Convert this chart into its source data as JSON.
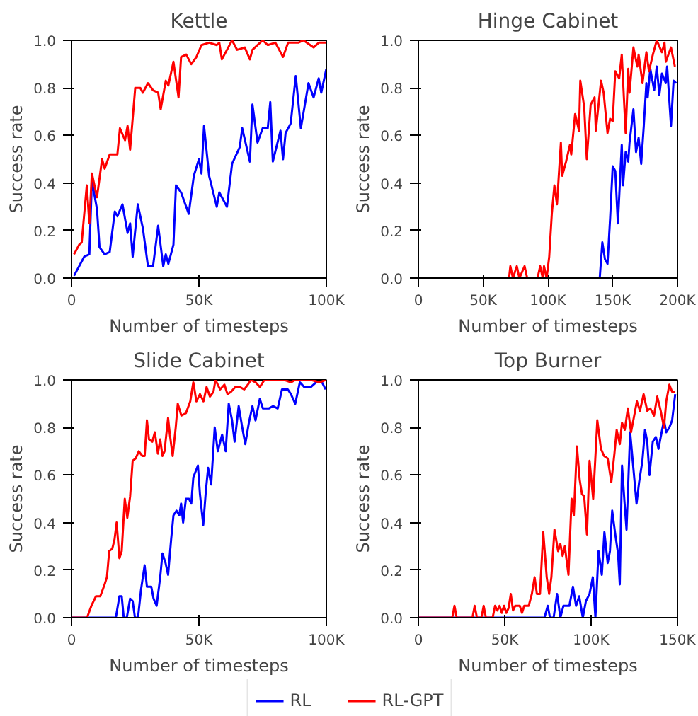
{
  "chart_data": [
    {
      "type": "line",
      "title": "Kettle",
      "xlabel": "Number of timesteps",
      "ylabel": "Success rate",
      "xlim": [
        0,
        100
      ],
      "xticks": [
        0,
        {
          "value": 50,
          "label": "50K"
        },
        {
          "value": 100,
          "label": "100K"
        }
      ],
      "ylim": [
        0,
        1
      ],
      "yticks": [
        {
          "value": 0,
          "label": "0.0"
        },
        {
          "value": 0.2,
          "label": "0.2"
        },
        {
          "value": 0.4,
          "label": "0.4"
        },
        {
          "value": 0.6,
          "label": "0.6"
        },
        {
          "value": 0.8,
          "label": "0.8"
        },
        {
          "value": 1,
          "label": "1.0"
        }
      ],
      "grid": false,
      "legend": "bottom",
      "line_style": "solid",
      "series": [
        {
          "name": "RL",
          "color": "#0000ff",
          "x": [
            1,
            3,
            5,
            7,
            8,
            10,
            11,
            13,
            15,
            17,
            18,
            20,
            22,
            23,
            24,
            26,
            28,
            30,
            32,
            34,
            36,
            37,
            38,
            40,
            41,
            43,
            46,
            48,
            50,
            51,
            52,
            54,
            57,
            58,
            61,
            63,
            66,
            67,
            70,
            71,
            73,
            75,
            77,
            78,
            79,
            82,
            83,
            84,
            86,
            88,
            90,
            93,
            95,
            97,
            98,
            100
          ],
          "values": [
            0.01,
            0.05,
            0.09,
            0.1,
            0.41,
            0.29,
            0.13,
            0.1,
            0.11,
            0.28,
            0.26,
            0.31,
            0.19,
            0.23,
            0.09,
            0.31,
            0.21,
            0.05,
            0.05,
            0.22,
            0.05,
            0.1,
            0.06,
            0.14,
            0.39,
            0.36,
            0.27,
            0.43,
            0.5,
            0.44,
            0.64,
            0.43,
            0.3,
            0.36,
            0.3,
            0.48,
            0.55,
            0.63,
            0.49,
            0.73,
            0.57,
            0.63,
            0.63,
            0.74,
            0.49,
            0.62,
            0.5,
            0.61,
            0.65,
            0.85,
            0.63,
            0.82,
            0.76,
            0.84,
            0.78,
            0.88
          ]
        },
        {
          "name": "RL-GPT",
          "color": "#ff0000",
          "x": [
            1,
            3,
            4,
            6,
            7,
            8,
            10,
            12,
            13,
            15,
            18,
            19,
            21,
            22,
            23,
            25,
            27,
            28,
            30,
            32,
            34,
            35,
            37,
            38,
            40,
            42,
            43,
            45,
            47,
            49,
            51,
            54,
            57,
            58,
            59,
            63,
            65,
            68,
            70,
            71,
            75,
            77,
            80,
            83,
            85,
            89,
            91,
            95,
            97,
            100
          ],
          "values": [
            0.1,
            0.14,
            0.15,
            0.39,
            0.23,
            0.44,
            0.34,
            0.5,
            0.46,
            0.52,
            0.52,
            0.63,
            0.58,
            0.64,
            0.54,
            0.8,
            0.8,
            0.78,
            0.82,
            0.79,
            0.78,
            0.71,
            0.83,
            0.81,
            0.91,
            0.76,
            0.93,
            0.94,
            0.9,
            0.93,
            0.98,
            0.99,
            0.98,
            0.99,
            0.92,
            1.0,
            0.96,
            0.97,
            0.92,
            0.96,
            1.0,
            0.98,
            0.99,
            0.93,
            0.99,
            0.99,
            1.0,
            0.97,
            0.99,
            0.99
          ]
        }
      ]
    },
    {
      "type": "line",
      "title": "Hinge Cabinet",
      "xlabel": "Number of timesteps",
      "ylabel": "Success rate",
      "xlim": [
        0,
        200
      ],
      "xticks": [
        0,
        {
          "value": 50,
          "label": "50K"
        },
        {
          "value": 100,
          "label": "100K"
        },
        {
          "value": 150,
          "label": "150K"
        },
        {
          "value": 200,
          "label": "200K"
        }
      ],
      "ylim": [
        0,
        1
      ],
      "yticks": [
        {
          "value": 0,
          "label": "0.0"
        },
        {
          "value": 0.2,
          "label": "0.2"
        },
        {
          "value": 0.4,
          "label": "0.4"
        },
        {
          "value": 0.6,
          "label": "0.6"
        },
        {
          "value": 0.8,
          "label": "0.8"
        },
        {
          "value": 1,
          "label": "1.0"
        }
      ],
      "grid": false,
      "line_style": "solid",
      "series": [
        {
          "color": "#0000ff",
          "x": [
            0,
            140,
            142,
            144,
            146,
            148,
            150,
            152,
            154,
            157,
            158,
            160,
            162,
            163,
            166,
            168,
            170,
            172,
            174,
            176,
            177,
            179,
            182,
            184,
            186,
            188,
            191,
            192,
            195,
            197,
            199
          ],
          "values": [
            0,
            0,
            0.15,
            0.08,
            0.06,
            0.25,
            0.47,
            0.45,
            0.23,
            0.56,
            0.39,
            0.53,
            0.49,
            0.57,
            0.71,
            0.53,
            0.59,
            0.48,
            0.64,
            0.82,
            0.76,
            0.88,
            0.79,
            0.89,
            0.77,
            0.86,
            0.82,
            0.89,
            0.64,
            0.83,
            0.82
          ]
        },
        {
          "color": "#ff0000",
          "x": [
            70,
            71,
            73,
            76,
            78,
            82,
            84,
            92,
            94,
            96,
            97,
            99,
            101,
            103,
            105,
            107,
            110,
            111,
            114,
            117,
            118,
            121,
            124,
            125,
            128,
            130,
            133,
            136,
            137,
            141,
            143,
            146,
            148,
            150,
            152,
            155,
            157,
            160,
            162,
            163,
            166,
            169,
            170,
            173,
            176,
            178,
            181,
            184,
            188,
            190,
            191,
            195,
            198
          ],
          "values": [
            0,
            0.05,
            0,
            0.05,
            0,
            0.05,
            0,
            0,
            0.05,
            0,
            0.05,
            0,
            0.09,
            0.27,
            0.39,
            0.31,
            0.57,
            0.43,
            0.49,
            0.56,
            0.52,
            0.69,
            0.62,
            0.83,
            0.72,
            0.5,
            0.73,
            0.76,
            0.62,
            0.83,
            0.78,
            0.61,
            0.67,
            0.66,
            0.87,
            0.84,
            0.94,
            0.61,
            0.88,
            0.78,
            0.97,
            0.89,
            0.94,
            0.82,
            0.95,
            0.87,
            0.94,
            1.0,
            0.95,
            0.99,
            0.91,
            0.97,
            0.89
          ]
        }
      ]
    },
    {
      "type": "line",
      "title": "Slide Cabinet",
      "xlabel": "Number of timesteps",
      "ylabel": "Success rate",
      "xlim": [
        0,
        100
      ],
      "xticks": [
        0,
        {
          "value": 50,
          "label": "50K"
        },
        {
          "value": 100,
          "label": "100K"
        }
      ],
      "ylim": [
        0,
        1
      ],
      "yticks": [
        {
          "value": 0,
          "label": "0.0"
        },
        {
          "value": 0.2,
          "label": "0.2"
        },
        {
          "value": 0.4,
          "label": "0.4"
        },
        {
          "value": 0.6,
          "label": "0.6"
        },
        {
          "value": 0.8,
          "label": "0.8"
        },
        {
          "value": 1,
          "label": "1.0"
        }
      ],
      "grid": false,
      "line_style": "solid",
      "series": [
        {
          "color": "#0000ff",
          "x": [
            0,
            17.4,
            18.8,
            19.7,
            20.5,
            21.7,
            23.0,
            24.0,
            24.9,
            26.1,
            27.3,
            28.7,
            29.6,
            31.3,
            32.2,
            33.4,
            34.8,
            35.7,
            36.9,
            37.9,
            39.1,
            40.0,
            41.2,
            42.3,
            43.0,
            43.8,
            44.9,
            46.1,
            47.0,
            47.8,
            49.6,
            50.4,
            51.7,
            52.7,
            53.6,
            54.8,
            56.2,
            57.4,
            59.1,
            60.5,
            61.7,
            63.0,
            64.0,
            65.6,
            67.0,
            68.2,
            69.6,
            71.0,
            72.2,
            73.9,
            75.1,
            77.4,
            79.1,
            80.9,
            82.6,
            84.9,
            86.1,
            87.8,
            89.6,
            91.3,
            93.9,
            96.0,
            98.3,
            99.7
          ],
          "values": [
            0,
            0,
            0.09,
            0.09,
            0,
            0,
            0.08,
            0.07,
            0,
            0,
            0.12,
            0.22,
            0.13,
            0.13,
            0.08,
            0.05,
            0.17,
            0.27,
            0.23,
            0.18,
            0.33,
            0.43,
            0.45,
            0.43,
            0.48,
            0.4,
            0.5,
            0.5,
            0.48,
            0.59,
            0.64,
            0.52,
            0.39,
            0.53,
            0.63,
            0.56,
            0.8,
            0.7,
            0.77,
            0.7,
            0.9,
            0.83,
            0.74,
            0.89,
            0.8,
            0.73,
            0.82,
            0.89,
            0.83,
            0.92,
            0.88,
            0.88,
            0.89,
            0.88,
            0.96,
            0.96,
            0.94,
            0.9,
            0.99,
            0.97,
            0.97,
            0.99,
            0.99,
            0.96
          ]
        },
        {
          "color": "#ff0000",
          "x": [
            0,
            6.1,
            7.8,
            9.6,
            11.3,
            13.0,
            13.9,
            14.8,
            16.0,
            16.9,
            17.7,
            18.8,
            19.7,
            20.9,
            21.9,
            23.0,
            24.0,
            25.2,
            26.4,
            27.8,
            28.7,
            29.6,
            30.4,
            31.7,
            32.7,
            33.9,
            34.8,
            35.7,
            36.5,
            37.9,
            38.6,
            39.7,
            40.9,
            41.7,
            43.1,
            44.9,
            46.6,
            47.8,
            49.0,
            50.4,
            51.8,
            53.0,
            54.3,
            55.7,
            56.5,
            58.3,
            60.0,
            61.2,
            62.6,
            64.3,
            66.1,
            67.8,
            69.2,
            70.4,
            72.2,
            73.9,
            75.7,
            80.0,
            83.5,
            86.1,
            87.8,
            90.4,
            93.9,
            97.4,
            99.7
          ],
          "values": [
            0,
            0,
            0.05,
            0.09,
            0.09,
            0.14,
            0.17,
            0.28,
            0.29,
            0.33,
            0.4,
            0.25,
            0.28,
            0.5,
            0.42,
            0.51,
            0.66,
            0.67,
            0.7,
            0.68,
            0.68,
            0.83,
            0.75,
            0.74,
            0.78,
            0.69,
            0.75,
            0.68,
            0.7,
            0.84,
            0.77,
            0.68,
            0.8,
            0.9,
            0.85,
            0.86,
            0.91,
            0.99,
            0.91,
            0.94,
            0.91,
            0.97,
            0.93,
            0.95,
            1.0,
            0.96,
            0.98,
            0.94,
            0.95,
            0.97,
            0.97,
            0.96,
            0.98,
            1.0,
            0.99,
            0.97,
            1.0,
            1.0,
            1.0,
            0.99,
            1.0,
            1.0,
            1.0,
            0.99,
            1.0
          ]
        }
      ]
    },
    {
      "type": "line",
      "title": "Top Burner",
      "xlabel": "Number of timesteps",
      "ylabel": "Success rate",
      "xlim": [
        0,
        150
      ],
      "xticks": [
        0,
        {
          "value": 50,
          "label": "50K"
        },
        {
          "value": 100,
          "label": "100K"
        },
        {
          "value": 150,
          "label": "150K"
        }
      ],
      "ylim": [
        0,
        1
      ],
      "yticks": [
        {
          "value": 0,
          "label": "0.0"
        },
        {
          "value": 0.2,
          "label": "0.2"
        },
        {
          "value": 0.4,
          "label": "0.4"
        },
        {
          "value": 0.6,
          "label": "0.6"
        },
        {
          "value": 0.8,
          "label": "0.8"
        },
        {
          "value": 1,
          "label": "1.0"
        }
      ],
      "grid": false,
      "line_style": "solid",
      "series": [
        {
          "color": "#0000ff",
          "x": [
            0,
            73.0,
            74.9,
            76.2,
            78.3,
            80.3,
            82.2,
            84.0,
            87.4,
            89.5,
            91.3,
            93.1,
            95.2,
            97.0,
            99.1,
            101.0,
            102.5,
            104.3,
            106.2,
            107.7,
            109.6,
            110.9,
            112.2,
            114.0,
            115.6,
            116.6,
            117.9,
            119.2,
            120.5,
            122.6,
            124.7,
            126.3,
            127.8,
            129.7,
            131.2,
            132.5,
            133.8,
            135.7,
            137.5,
            139.0,
            140.3,
            142.2,
            143.5,
            145.3,
            146.9,
            148.7
          ],
          "values": [
            0,
            0,
            0.05,
            0,
            0,
            0.1,
            0,
            0.05,
            0.05,
            0.13,
            0.05,
            0.09,
            0,
            0.07,
            0.1,
            0.17,
            0,
            0.28,
            0.18,
            0.36,
            0.23,
            0.28,
            0.45,
            0.35,
            0.27,
            0.14,
            0.64,
            0.5,
            0.37,
            0.78,
            0.61,
            0.48,
            0.57,
            0.66,
            0.79,
            0.74,
            0.6,
            0.74,
            0.76,
            0.71,
            0.76,
            0.83,
            0.78,
            0.8,
            0.83,
            0.94
          ]
        },
        {
          "color": "#ff0000",
          "x": [
            0,
            19.6,
            20.9,
            22.2,
            31.3,
            32.6,
            33.9,
            36.5,
            37.8,
            39.1,
            43.0,
            44.4,
            45.7,
            47.0,
            48.3,
            49.6,
            50.9,
            52.2,
            53.5,
            54.8,
            56.1,
            58.7,
            60.0,
            61.3,
            63.9,
            65.7,
            67.3,
            68.6,
            70.4,
            72.3,
            74.3,
            75.7,
            77.0,
            78.8,
            80.9,
            82.2,
            83.5,
            84.8,
            86.9,
            88.7,
            90.0,
            91.8,
            93.4,
            94.7,
            96.0,
            97.6,
            99.1,
            101.2,
            103.6,
            105.7,
            107.5,
            109.6,
            111.7,
            113.5,
            114.8,
            116.6,
            117.9,
            119.5,
            121.3,
            123.1,
            124.7,
            126.5,
            128.3,
            130.4,
            132.5,
            134.3,
            136.4,
            138.3,
            140.3,
            142.2,
            143.5,
            145.3,
            146.9,
            148.7
          ],
          "values": [
            0,
            0,
            0.05,
            0,
            0,
            0.05,
            0,
            0,
            0.05,
            0,
            0,
            0.05,
            0.03,
            0.05,
            0.02,
            0.05,
            0.02,
            0.04,
            0.1,
            0.03,
            0.05,
            0.05,
            0.02,
            0.05,
            0.05,
            0.1,
            0.17,
            0.1,
            0.1,
            0.36,
            0.17,
            0.1,
            0.17,
            0.37,
            0.28,
            0.31,
            0.26,
            0.3,
            0.18,
            0.5,
            0.43,
            0.72,
            0.58,
            0.52,
            0.51,
            0.35,
            0.66,
            0.5,
            0.83,
            0.71,
            0.68,
            0.67,
            0.57,
            0.69,
            0.79,
            0.73,
            0.82,
            0.79,
            0.88,
            0.78,
            0.84,
            0.91,
            0.87,
            0.94,
            0.87,
            0.88,
            0.85,
            0.93,
            0.87,
            0.8,
            0.91,
            0.98,
            0.95,
            0.95
          ]
        }
      ]
    }
  ]
}
